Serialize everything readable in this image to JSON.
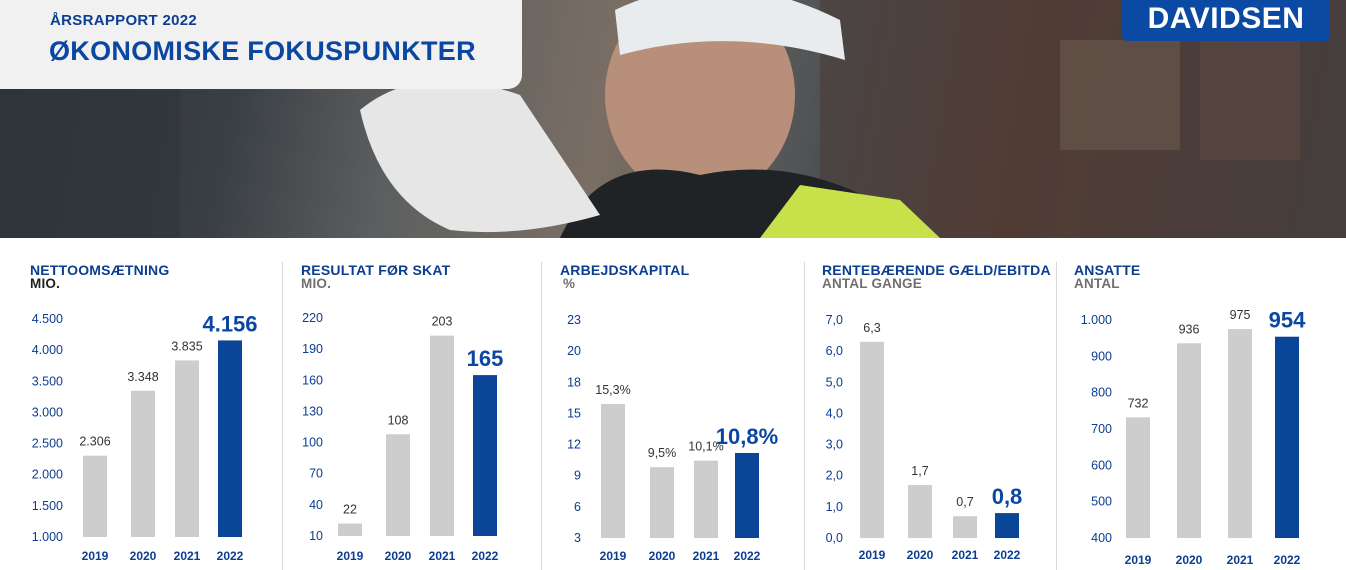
{
  "header": {
    "subtitle": "ÅRSRAPPORT 2022",
    "title": "ØKONOMISKE FOKUSPUNKTER",
    "logo": "DAVIDSEN"
  },
  "colors": {
    "brand_blue": "#0b47a1",
    "bar_grey": "#cdcdcd",
    "highlight_bar": "#0b4597"
  },
  "chart_data": [
    {
      "type": "bar",
      "title": "NETTOOMSÆTNING",
      "ylabel": "MIO.",
      "categories": [
        "2019",
        "2020",
        "2021",
        "2022"
      ],
      "values": [
        2306,
        3348,
        3835,
        4156
      ],
      "value_labels": [
        "2.306",
        "3.348",
        "3.835",
        "4.156"
      ],
      "highlight_index": 3,
      "ylim": [
        1000,
        4500
      ],
      "yticks": [
        1000,
        1500,
        2000,
        2500,
        3000,
        3500,
        4000,
        4500
      ],
      "ytick_labels": [
        "1.000",
        "1.500",
        "2.000",
        "2.500",
        "3.000",
        "3.500",
        "4.000",
        "4.500"
      ],
      "grid": false
    },
    {
      "type": "bar",
      "title": "RESULTAT FØR SKAT",
      "ylabel": "MIO.",
      "categories": [
        "2019",
        "2020",
        "2021",
        "2022"
      ],
      "values": [
        22,
        108,
        203,
        165
      ],
      "value_labels": [
        "22",
        "108",
        "203",
        "165"
      ],
      "highlight_index": 3,
      "ylim": [
        10,
        220
      ],
      "yticks": [
        10,
        40,
        70,
        100,
        130,
        160,
        190,
        220
      ],
      "ytick_labels": [
        "10",
        "40",
        "70",
        "100",
        "130",
        "160",
        "190",
        "220"
      ],
      "grid": false
    },
    {
      "type": "bar",
      "title": "ARBEJDSKAPITAL",
      "ylabel": "%",
      "categories": [
        "2019",
        "2020",
        "2021",
        "2022"
      ],
      "values": [
        15.3,
        9.5,
        10.1,
        10.8
      ],
      "value_labels": [
        "15,3%",
        "9,5%",
        "10,1%",
        "10,8%"
      ],
      "highlight_index": 3,
      "ylim": [
        3,
        23
      ],
      "yticks": [
        3,
        6,
        9,
        12,
        15,
        18,
        20,
        23
      ],
      "ytick_labels": [
        "3",
        "6",
        "9",
        "12",
        "15",
        "18",
        "20",
        "23"
      ],
      "grid": false
    },
    {
      "type": "bar",
      "title": "RENTEBÆRENDE GÆLD/EBITDA",
      "ylabel": "ANTAL GANGE",
      "categories": [
        "2019",
        "2020",
        "2021",
        "2022"
      ],
      "values": [
        6.3,
        1.7,
        0.7,
        0.8
      ],
      "value_labels": [
        "6,3",
        "1,7",
        "0,7",
        "0,8"
      ],
      "highlight_index": 3,
      "ylim": [
        0,
        7
      ],
      "yticks": [
        0,
        1,
        2,
        3,
        4,
        5,
        6,
        7
      ],
      "ytick_labels": [
        "0,0",
        "1,0",
        "2,0",
        "3,0",
        "4,0",
        "5,0",
        "6,0",
        "7,0"
      ],
      "grid": false
    },
    {
      "type": "bar",
      "title": "ANSATTE",
      "ylabel": "ANTAL",
      "categories": [
        "2019",
        "2020",
        "2021",
        "2022"
      ],
      "values": [
        732,
        936,
        975,
        954
      ],
      "value_labels": [
        "732",
        "936",
        "975",
        "954"
      ],
      "highlight_index": 3,
      "ylim": [
        400,
        1000
      ],
      "yticks": [
        400,
        500,
        600,
        700,
        800,
        900,
        1000
      ],
      "ytick_labels": [
        "400",
        "500",
        "600",
        "700",
        "800",
        "900",
        "1.000"
      ],
      "grid": false
    }
  ]
}
